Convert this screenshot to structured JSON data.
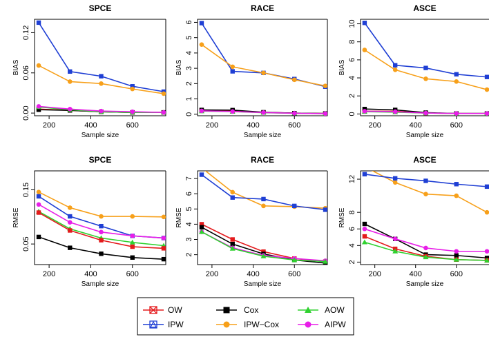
{
  "legend": {
    "entries": [
      {
        "name": "OW",
        "color": "#e41a1c",
        "marker": "square-x"
      },
      {
        "name": "IPW",
        "color": "#1f3fd4",
        "marker": "square-triangle"
      },
      {
        "name": "Cox",
        "color": "#000000",
        "marker": "square"
      },
      {
        "name": "IPW−Cox",
        "color": "#f7a01a",
        "marker": "circle"
      },
      {
        "name": "AOW",
        "color": "#2fd12f",
        "marker": "triangle"
      },
      {
        "name": "AIPW",
        "color": "#e81ee8",
        "marker": "circle"
      }
    ]
  },
  "chart_data": [
    {
      "type": "line",
      "title": "SPCE",
      "xlabel": "Sample size",
      "ylabel": "BIAS",
      "x": [
        150,
        300,
        450,
        600,
        750
      ],
      "xlim": [
        130,
        760
      ],
      "ylim": [
        -0.004,
        0.14
      ],
      "xticks": [
        200,
        400,
        600
      ],
      "yticks": [
        0.0,
        0.06,
        0.12
      ],
      "ytick_labels": [
        "0.00",
        "0.06",
        "0.12"
      ],
      "series": [
        {
          "name": "IPW",
          "values": [
            0.135,
            0.062,
            0.055,
            0.04,
            0.032
          ]
        },
        {
          "name": "IPW−Cox",
          "values": [
            0.071,
            0.047,
            0.044,
            0.036,
            0.029
          ]
        },
        {
          "name": "OW",
          "values": [
            0.006,
            0.004,
            0.002,
            0.001,
            0.001
          ]
        },
        {
          "name": "Cox",
          "values": [
            0.005,
            0.004,
            0.002,
            0.001,
            0.001
          ]
        },
        {
          "name": "AOW",
          "values": [
            0.009,
            0.005,
            0.002,
            0.001,
            0.001
          ]
        },
        {
          "name": "AIPW",
          "values": [
            0.01,
            0.006,
            0.003,
            0.002,
            0.001
          ]
        }
      ]
    },
    {
      "type": "line",
      "title": "RACE",
      "xlabel": "Sample size",
      "ylabel": "BIAS",
      "x": [
        150,
        300,
        450,
        600,
        750
      ],
      "xlim": [
        130,
        760
      ],
      "ylim": [
        -0.1,
        6.2
      ],
      "xticks": [
        200,
        400,
        600
      ],
      "yticks": [
        0,
        1,
        2,
        3,
        4,
        5,
        6
      ],
      "ytick_labels": [
        "0",
        "1",
        "2",
        "3",
        "4",
        "5",
        "6"
      ],
      "series": [
        {
          "name": "IPW",
          "values": [
            5.95,
            2.8,
            2.7,
            2.3,
            1.8
          ]
        },
        {
          "name": "IPW−Cox",
          "values": [
            4.55,
            3.1,
            2.7,
            2.25,
            1.85
          ]
        },
        {
          "name": "OW",
          "values": [
            0.25,
            0.22,
            0.12,
            0.07,
            0.05
          ]
        },
        {
          "name": "Cox",
          "values": [
            0.28,
            0.27,
            0.13,
            0.07,
            0.05
          ]
        },
        {
          "name": "AOW",
          "values": [
            0.2,
            0.17,
            0.1,
            0.06,
            0.04
          ]
        },
        {
          "name": "AIPW",
          "values": [
            0.22,
            0.18,
            0.11,
            0.06,
            0.04
          ]
        }
      ]
    },
    {
      "type": "line",
      "title": "ASCE",
      "xlabel": "Sample size",
      "ylabel": "BIAS",
      "x": [
        150,
        300,
        450,
        600,
        750
      ],
      "xlim": [
        130,
        760
      ],
      "ylim": [
        -0.2,
        10.5
      ],
      "xticks": [
        200,
        400,
        600
      ],
      "yticks": [
        0,
        2,
        4,
        6,
        8,
        10
      ],
      "ytick_labels": [
        "0",
        "2",
        "4",
        "6",
        "8",
        "10"
      ],
      "series": [
        {
          "name": "IPW",
          "values": [
            10.1,
            5.4,
            5.1,
            4.4,
            4.1
          ]
        },
        {
          "name": "IPW−Cox",
          "values": [
            7.1,
            4.9,
            3.9,
            3.6,
            2.7
          ]
        },
        {
          "name": "OW",
          "values": [
            0.3,
            0.3,
            0.1,
            0.05,
            0.05
          ]
        },
        {
          "name": "Cox",
          "values": [
            0.55,
            0.45,
            0.15,
            0.05,
            0.05
          ]
        },
        {
          "name": "AOW",
          "values": [
            0.25,
            0.2,
            0.1,
            0.05,
            0.05
          ]
        },
        {
          "name": "AIPW",
          "values": [
            0.3,
            0.25,
            0.1,
            0.05,
            0.05
          ]
        }
      ]
    },
    {
      "type": "line",
      "title": "SPCE",
      "xlabel": "Sample size",
      "ylabel": "RMSE",
      "x": [
        150,
        300,
        450,
        600,
        750
      ],
      "xlim": [
        130,
        760
      ],
      "ylim": [
        0.012,
        0.185
      ],
      "xticks": [
        200,
        400,
        600
      ],
      "yticks": [
        0.05,
        0.15
      ],
      "ytick_labels": [
        "0.05",
        "0.15"
      ],
      "series": [
        {
          "name": "IPW−Cox",
          "values": [
            0.146,
            0.117,
            0.101,
            0.101,
            0.1
          ]
        },
        {
          "name": "IPW",
          "values": [
            0.138,
            0.101,
            0.083,
            0.065,
            0.061
          ]
        },
        {
          "name": "AIPW",
          "values": [
            0.123,
            0.09,
            0.072,
            0.065,
            0.061
          ]
        },
        {
          "name": "AOW",
          "values": [
            0.11,
            0.078,
            0.061,
            0.053,
            0.047
          ]
        },
        {
          "name": "OW",
          "values": [
            0.108,
            0.075,
            0.057,
            0.045,
            0.042
          ]
        },
        {
          "name": "Cox",
          "values": [
            0.063,
            0.043,
            0.032,
            0.025,
            0.022
          ]
        }
      ]
    },
    {
      "type": "line",
      "title": "RACE",
      "xlabel": "Sample size",
      "ylabel": "RMSE",
      "x": [
        150,
        300,
        450,
        600,
        750
      ],
      "xlim": [
        130,
        760
      ],
      "ylim": [
        1.35,
        7.5
      ],
      "xticks": [
        200,
        400,
        600
      ],
      "yticks": [
        2,
        3,
        4,
        5,
        6,
        7
      ],
      "ytick_labels": [
        "2",
        "3",
        "4",
        "5",
        "6",
        "7"
      ],
      "series": [
        {
          "name": "IPW−Cox",
          "values": [
            7.7,
            6.1,
            5.2,
            5.15,
            5.05
          ]
        },
        {
          "name": "IPW",
          "values": [
            7.25,
            5.75,
            5.65,
            5.2,
            4.95
          ]
        },
        {
          "name": "OW",
          "values": [
            4.0,
            3.0,
            2.2,
            1.75,
            1.55
          ]
        },
        {
          "name": "Cox",
          "values": [
            3.8,
            2.7,
            2.05,
            1.65,
            1.45
          ]
        },
        {
          "name": "AIPW",
          "values": [
            3.5,
            2.45,
            1.95,
            1.75,
            1.6
          ]
        },
        {
          "name": "AOW",
          "values": [
            3.5,
            2.4,
            1.9,
            1.65,
            1.55
          ]
        }
      ]
    },
    {
      "type": "line",
      "title": "ASCE",
      "xlabel": "Sample size",
      "ylabel": "RMSE",
      "x": [
        150,
        300,
        450,
        600,
        750
      ],
      "xlim": [
        130,
        760
      ],
      "ylim": [
        1.7,
        13.0
      ],
      "xticks": [
        200,
        400,
        600
      ],
      "yticks": [
        2,
        4,
        6,
        8,
        12
      ],
      "ytick_labels": [
        "2",
        "4",
        "6",
        "8",
        "12"
      ],
      "series": [
        {
          "name": "IPW−Cox",
          "values": [
            13.5,
            11.6,
            10.2,
            10.0,
            8.0
          ]
        },
        {
          "name": "IPW",
          "values": [
            12.6,
            12.1,
            11.8,
            11.4,
            11.1
          ]
        },
        {
          "name": "Cox",
          "values": [
            6.6,
            4.8,
            2.9,
            2.8,
            2.5
          ]
        },
        {
          "name": "AIPW",
          "values": [
            6.0,
            4.8,
            3.7,
            3.3,
            3.3
          ]
        },
        {
          "name": "OW",
          "values": [
            5.1,
            3.6,
            2.7,
            2.3,
            2.2
          ]
        },
        {
          "name": "AOW",
          "values": [
            4.4,
            3.3,
            2.6,
            2.3,
            2.2
          ]
        }
      ]
    }
  ]
}
